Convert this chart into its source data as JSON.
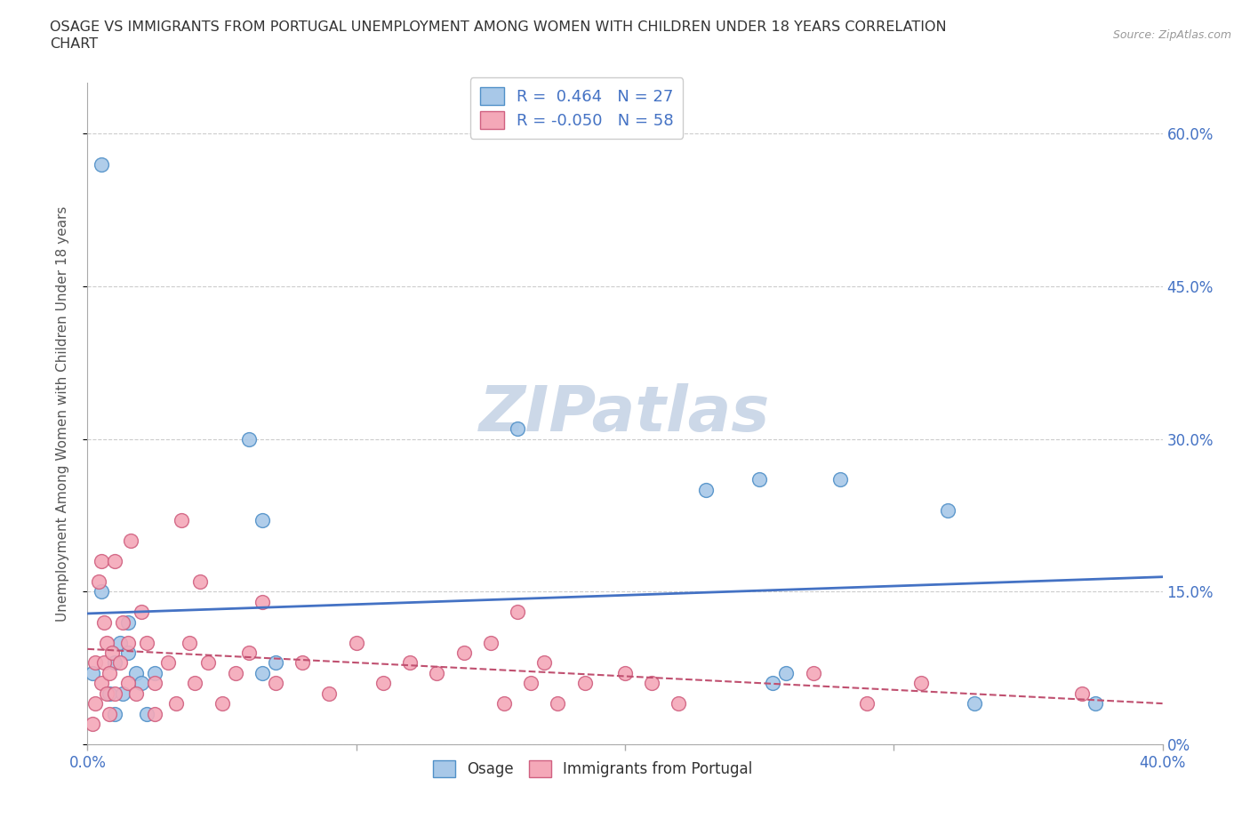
{
  "title_line1": "OSAGE VS IMMIGRANTS FROM PORTUGAL UNEMPLOYMENT AMONG WOMEN WITH CHILDREN UNDER 18 YEARS CORRELATION",
  "title_line2": "CHART",
  "source": "Source: ZipAtlas.com",
  "ylabel": "Unemployment Among Women with Children Under 18 years",
  "xlim": [
    0.0,
    0.4
  ],
  "ylim": [
    0.0,
    0.65
  ],
  "xticks": [
    0.0,
    0.1,
    0.2,
    0.3,
    0.4
  ],
  "xticklabels_show": [
    "0.0%",
    "",
    "",
    "",
    "40.0%"
  ],
  "yticks": [
    0.0,
    0.15,
    0.3,
    0.45,
    0.6
  ],
  "yticklabels": [
    "0%",
    "15.0%",
    "30.0%",
    "45.0%",
    "60.0%"
  ],
  "osage_color": "#a8c8e8",
  "portugal_color": "#f4a8b8",
  "osage_edge_color": "#5090c8",
  "portugal_edge_color": "#d06080",
  "osage_line_color": "#4472c4",
  "portugal_line_color": "#c05070",
  "osage_R": "0.464",
  "osage_N": "27",
  "portugal_R": "-0.050",
  "portugal_N": "58",
  "background_color": "#ffffff",
  "grid_color": "#cccccc",
  "watermark_text": "ZIPatlas",
  "watermark_color": "#ccd8e8",
  "tick_label_color": "#4472c4",
  "ylabel_color": "#555555",
  "legend_R_N_color": "#4472c4",
  "title_color": "#333333",
  "source_color": "#999999",
  "osage_x": [
    0.008,
    0.01,
    0.012,
    0.013,
    0.015,
    0.015,
    0.018,
    0.02,
    0.022,
    0.025,
    0.005,
    0.005,
    0.06,
    0.065,
    0.065,
    0.07,
    0.002,
    0.16,
    0.23,
    0.25,
    0.255,
    0.26,
    0.28,
    0.32,
    0.33,
    0.375,
    0.01
  ],
  "osage_y": [
    0.05,
    0.08,
    0.1,
    0.05,
    0.09,
    0.12,
    0.07,
    0.06,
    0.03,
    0.07,
    0.15,
    0.57,
    0.3,
    0.22,
    0.07,
    0.08,
    0.07,
    0.31,
    0.25,
    0.26,
    0.06,
    0.07,
    0.26,
    0.23,
    0.04,
    0.04,
    0.03
  ],
  "portugal_x": [
    0.002,
    0.003,
    0.003,
    0.004,
    0.005,
    0.005,
    0.006,
    0.006,
    0.007,
    0.007,
    0.008,
    0.008,
    0.009,
    0.01,
    0.01,
    0.012,
    0.013,
    0.015,
    0.015,
    0.016,
    0.018,
    0.02,
    0.022,
    0.025,
    0.025,
    0.03,
    0.033,
    0.035,
    0.038,
    0.04,
    0.042,
    0.045,
    0.05,
    0.055,
    0.06,
    0.065,
    0.07,
    0.08,
    0.09,
    0.1,
    0.11,
    0.12,
    0.13,
    0.14,
    0.15,
    0.155,
    0.16,
    0.165,
    0.17,
    0.175,
    0.185,
    0.2,
    0.21,
    0.22,
    0.27,
    0.29,
    0.31,
    0.37
  ],
  "portugal_y": [
    0.02,
    0.04,
    0.08,
    0.16,
    0.18,
    0.06,
    0.08,
    0.12,
    0.1,
    0.05,
    0.07,
    0.03,
    0.09,
    0.18,
    0.05,
    0.08,
    0.12,
    0.06,
    0.1,
    0.2,
    0.05,
    0.13,
    0.1,
    0.03,
    0.06,
    0.08,
    0.04,
    0.22,
    0.1,
    0.06,
    0.16,
    0.08,
    0.04,
    0.07,
    0.09,
    0.14,
    0.06,
    0.08,
    0.05,
    0.1,
    0.06,
    0.08,
    0.07,
    0.09,
    0.1,
    0.04,
    0.13,
    0.06,
    0.08,
    0.04,
    0.06,
    0.07,
    0.06,
    0.04,
    0.07,
    0.04,
    0.06,
    0.05
  ]
}
